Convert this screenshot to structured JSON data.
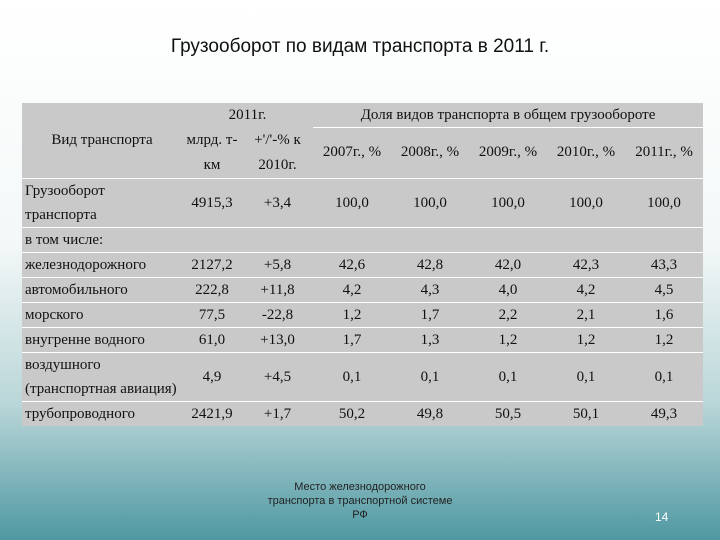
{
  "title": "Грузооборот по видам транспорта в 2011 г.",
  "table": {
    "header": {
      "label": "Вид транспорта",
      "group_2011": "2011г.",
      "group_share": "Доля видов транспорта в общем грузообороте",
      "columns": [
        "млрд. т-км",
        "+'/'-% к 2010г.",
        "2007г., %",
        "2008г., %",
        "2009г., %",
        "2010г., %",
        "2011г., %"
      ]
    },
    "rows": [
      {
        "label": "Грузооборот транспорта",
        "cells": [
          "4915,3",
          "+3,4",
          "100,0",
          "100,0",
          "100,0",
          "100,0",
          "100,0"
        ]
      },
      {
        "label": "в том числе:"
      },
      {
        "label": "железнодорожного",
        "cells": [
          "2127,2",
          "+5,8",
          "42,6",
          "42,8",
          "42,0",
          "42,3",
          "43,3"
        ]
      },
      {
        "label": "автомобильного",
        "cells": [
          "222,8",
          "+11,8",
          "4,2",
          "4,3",
          "4,0",
          "4,2",
          "4,5"
        ]
      },
      {
        "label": "морского",
        "cells": [
          "77,5",
          "-22,8",
          "1,2",
          "1,7",
          "2,2",
          "2,1",
          "1,6"
        ]
      },
      {
        "label": "внугренне водного",
        "cells": [
          "61,0",
          "+13,0",
          "1,7",
          "1,3",
          "1,2",
          "1,2",
          "1,2"
        ]
      },
      {
        "label": "воздушного (транспортная авиация)",
        "cells": [
          "4,9",
          "+4,5",
          "0,1",
          "0,1",
          "0,1",
          "0,1",
          "0,1"
        ]
      },
      {
        "label": "трубопроводного",
        "cells": [
          "2421,9",
          "+1,7",
          "50,2",
          "49,8",
          "50,5",
          "50,1",
          "49,3"
        ]
      }
    ]
  },
  "footer": {
    "note": "Место железнодорожного транспорта в транспортной системе РФ",
    "page": "14"
  }
}
